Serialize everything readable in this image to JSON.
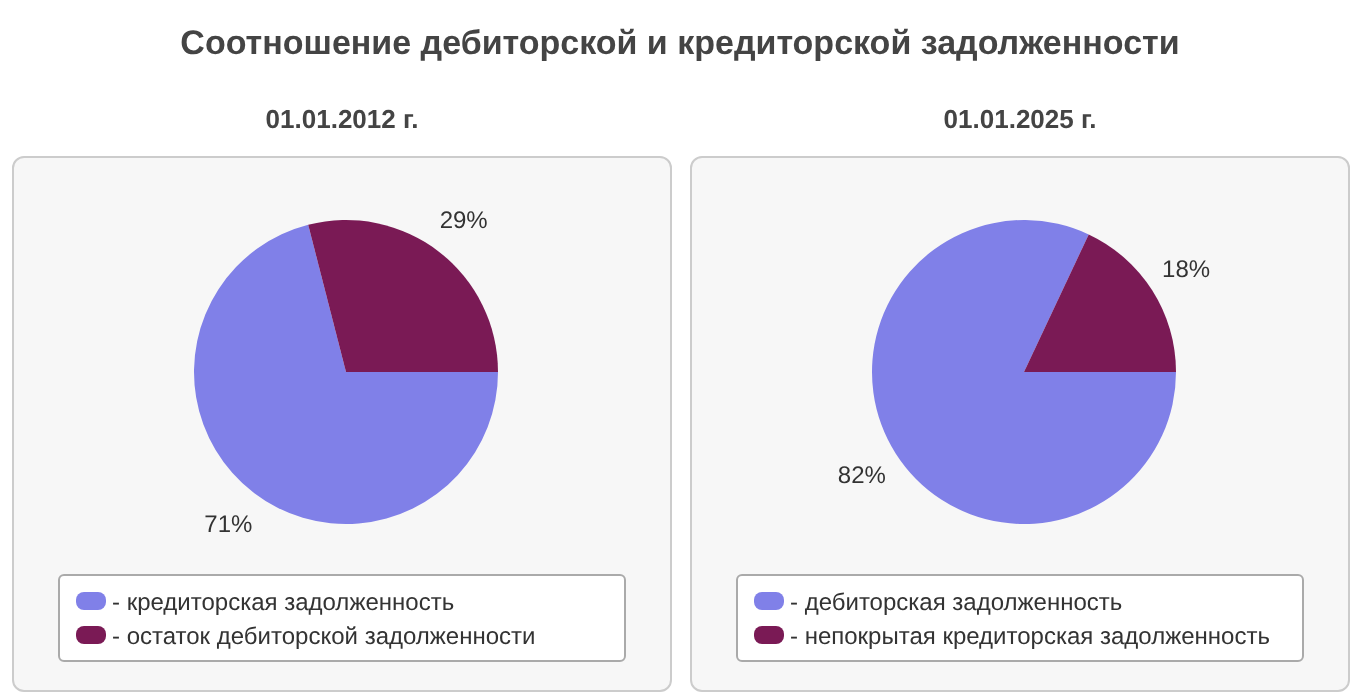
{
  "chart_data": [
    {
      "type": "pie",
      "title": "Соотношение дебиторской и кредиторской задолженности",
      "subtitle": "01.01.2012 г.",
      "categories": [
        "- кредиторская задолженность",
        "- остаток дебиторской задолженности"
      ],
      "values": [
        71,
        29
      ],
      "value_labels": [
        "71%",
        "29%"
      ],
      "colors": [
        "#8080e8",
        "#7a1a55"
      ],
      "legend": "bottom"
    },
    {
      "type": "pie",
      "subtitle": "01.01.2025 г.",
      "categories": [
        "- дебиторская задолженность",
        "- непокрытая кредиторская задолженность"
      ],
      "values": [
        82,
        18
      ],
      "value_labels": [
        "82%",
        "18%"
      ],
      "colors": [
        "#8080e8",
        "#7a1a55"
      ],
      "legend": "bottom"
    }
  ]
}
